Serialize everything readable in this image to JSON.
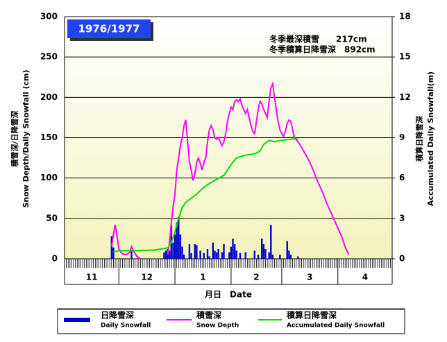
{
  "chart_data": {
    "type": "combo",
    "title": "1976/1977",
    "annotations": [
      "冬季最深積雪　　217cm",
      "冬季積算日降雪深　892cm"
    ],
    "y_label": [
      "積雪深/日降雪深",
      "Snow Depth/Daily Snowfall (cm)"
    ],
    "y2_label": [
      "積算日降雪深",
      "Accumulated Daily Snowfall(m)"
    ],
    "x_label": "月日　Date",
    "xlim": [
      0,
      181
    ],
    "xticks": [
      0,
      30,
      61,
      92,
      120,
      151,
      181
    ],
    "month_labels": [
      "11",
      "12",
      "1",
      "2",
      "3",
      "4"
    ],
    "ylim": [
      0,
      300
    ],
    "yticks": [
      0,
      50,
      100,
      150,
      200,
      250,
      300
    ],
    "y2lim": [
      0,
      18
    ],
    "y2ticks": [
      0,
      3,
      6,
      9,
      12,
      15,
      18
    ],
    "grid": true,
    "series": [
      {
        "name": "日降雪深",
        "name_en": "Daily Snowfall",
        "kind": "bar",
        "color": "#0000cc",
        "x": [
          26,
          27,
          37,
          55,
          56,
          57,
          58,
          59,
          60,
          61,
          62,
          63,
          64,
          65,
          66,
          69,
          70,
          72,
          73,
          75,
          77,
          79,
          80,
          82,
          83,
          84,
          85,
          87,
          88,
          91,
          92,
          93,
          94,
          95,
          97,
          100,
          105,
          107,
          109,
          110,
          111,
          113,
          114,
          115,
          119,
          123,
          124,
          125,
          129
        ],
        "values": [
          28,
          14,
          10,
          8,
          10,
          12,
          10,
          42,
          20,
          30,
          45,
          52,
          30,
          15,
          5,
          18,
          7,
          18,
          17,
          10,
          7,
          12,
          3,
          20,
          10,
          8,
          12,
          8,
          18,
          8,
          15,
          25,
          18,
          10,
          7,
          8,
          10,
          5,
          25,
          18,
          12,
          8,
          42,
          5,
          5,
          22,
          10,
          5,
          3
        ]
      },
      {
        "name": "積雪深",
        "name_en": "Snow Depth",
        "kind": "line",
        "color": "#ff00ff",
        "x": [
          26,
          27,
          28,
          29,
          30,
          32,
          34,
          36,
          37,
          38,
          40,
          42,
          50,
          57,
          58,
          59,
          60,
          61,
          62,
          63,
          64,
          65,
          66,
          67,
          68,
          69,
          70,
          71,
          72,
          73,
          74,
          75,
          76,
          77,
          78,
          79,
          80,
          81,
          82,
          83,
          84,
          85,
          86,
          87,
          88,
          89,
          90,
          91,
          92,
          93,
          94,
          95,
          96,
          97,
          98,
          99,
          100,
          101,
          102,
          103,
          104,
          105,
          106,
          107,
          108,
          109,
          110,
          111,
          112,
          113,
          114,
          115,
          116,
          117,
          118,
          119,
          120,
          121,
          122,
          123,
          124,
          125,
          126,
          127,
          129,
          131,
          133,
          135,
          137,
          139,
          141,
          143,
          145,
          147,
          149,
          151,
          153,
          155,
          157
        ],
        "values": [
          15,
          30,
          42,
          28,
          12,
          6,
          5,
          8,
          15,
          10,
          3,
          0,
          null,
          5,
          20,
          45,
          65,
          80,
          110,
          125,
          140,
          150,
          165,
          172,
          145,
          120,
          110,
          97,
          105,
          120,
          125,
          118,
          110,
          120,
          125,
          145,
          160,
          165,
          160,
          150,
          148,
          150,
          145,
          140,
          145,
          155,
          170,
          180,
          188,
          185,
          195,
          197,
          195,
          198,
          190,
          185,
          180,
          185,
          175,
          165,
          158,
          155,
          170,
          185,
          195,
          192,
          185,
          180,
          175,
          195,
          212,
          217,
          200,
          185,
          170,
          160,
          155,
          152,
          158,
          168,
          172,
          170,
          160,
          150,
          145,
          138,
          130,
          122,
          112,
          100,
          90,
          80,
          68,
          58,
          48,
          38,
          28,
          15,
          5
        ]
      },
      {
        "name": "積算日降雪深",
        "name_en": "Accumulated Daily Snowfall",
        "kind": "line",
        "axis": "y2",
        "color": "#00dd00",
        "x": [
          27,
          30,
          40,
          50,
          57,
          59,
          61,
          63,
          65,
          67,
          70,
          73,
          76,
          80,
          84,
          88,
          92,
          95,
          100,
          105,
          108,
          110,
          113,
          116,
          120,
          126,
          129
        ],
        "values": [
          0.5,
          0.6,
          0.6,
          0.65,
          0.8,
          1.2,
          2.0,
          3.0,
          3.8,
          4.2,
          4.5,
          4.8,
          5.2,
          5.6,
          5.9,
          6.2,
          7.0,
          7.5,
          7.7,
          7.8,
          8.0,
          8.5,
          8.8,
          8.7,
          8.8,
          8.9,
          8.92
        ]
      }
    ]
  }
}
